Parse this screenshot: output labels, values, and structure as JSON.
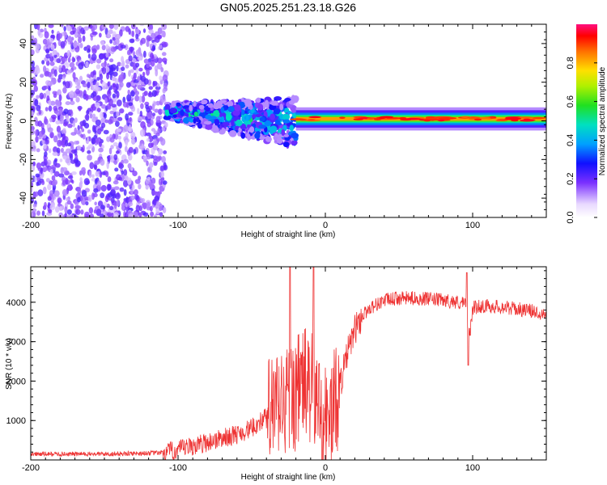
{
  "title": "GN05.2025.251.23.18.G26",
  "chart_data": [
    {
      "type": "heatmap",
      "name": "spectrogram",
      "xlabel": "Height of straight line (km)",
      "ylabel": "Frequency (Hz)",
      "xlim": [
        -200,
        150
      ],
      "ylim": [
        -50,
        50
      ],
      "x_ticks": [
        -200,
        -100,
        0,
        100
      ],
      "y_ticks": [
        -40,
        -20,
        0,
        20,
        40
      ],
      "colorbar": {
        "label": "Normalized spectral amplitude",
        "range": [
          0.0,
          1.0
        ],
        "ticks": [
          0.0,
          0.2,
          0.4,
          0.6,
          0.8
        ]
      },
      "segments": [
        {
          "x_range": [
            -200,
            -108
          ],
          "freq_range": [
            -50,
            50
          ],
          "description": "scattered noise",
          "amplitude": 0.15
        },
        {
          "x_range": [
            -108,
            -20
          ],
          "freq_center": 5,
          "freq_slope_end": -5,
          "amplitude": 0.4
        },
        {
          "x_range": [
            -20,
            150
          ],
          "freq_center": 1,
          "amplitude": 0.9
        }
      ]
    },
    {
      "type": "line",
      "name": "snr",
      "xlabel": "Height of straight line (km)",
      "ylabel": "SNR (10 * v/v)",
      "xlim": [
        -200,
        150
      ],
      "ylim": [
        0,
        4900
      ],
      "x_ticks": [
        -200,
        -100,
        0,
        100
      ],
      "y_ticks": [
        1000,
        2000,
        3000,
        4000
      ],
      "color": "#ee3333",
      "x": [
        -200,
        -150,
        -110,
        -100,
        -90,
        -80,
        -70,
        -60,
        -50,
        -40,
        -30,
        -20,
        -15,
        -10,
        -5,
        0,
        5,
        10,
        15,
        20,
        25,
        30,
        40,
        50,
        60,
        70,
        80,
        90,
        95,
        98,
        100,
        105,
        110,
        120,
        130,
        140,
        150
      ],
      "values": [
        150,
        150,
        180,
        250,
        350,
        450,
        550,
        650,
        800,
        1100,
        1400,
        1700,
        2000,
        1800,
        1400,
        1000,
        1200,
        1900,
        2700,
        3300,
        3650,
        3850,
        4050,
        4100,
        4100,
        4080,
        4050,
        4000,
        3950,
        3100,
        3850,
        3900,
        3900,
        3880,
        3830,
        3780,
        3700
      ],
      "spikes": [
        {
          "x": -24,
          "value": 4900
        },
        {
          "x": -8,
          "value": 4900
        },
        {
          "x": 97,
          "value": 2400
        },
        {
          "x": 96,
          "value": 4750
        }
      ]
    }
  ]
}
